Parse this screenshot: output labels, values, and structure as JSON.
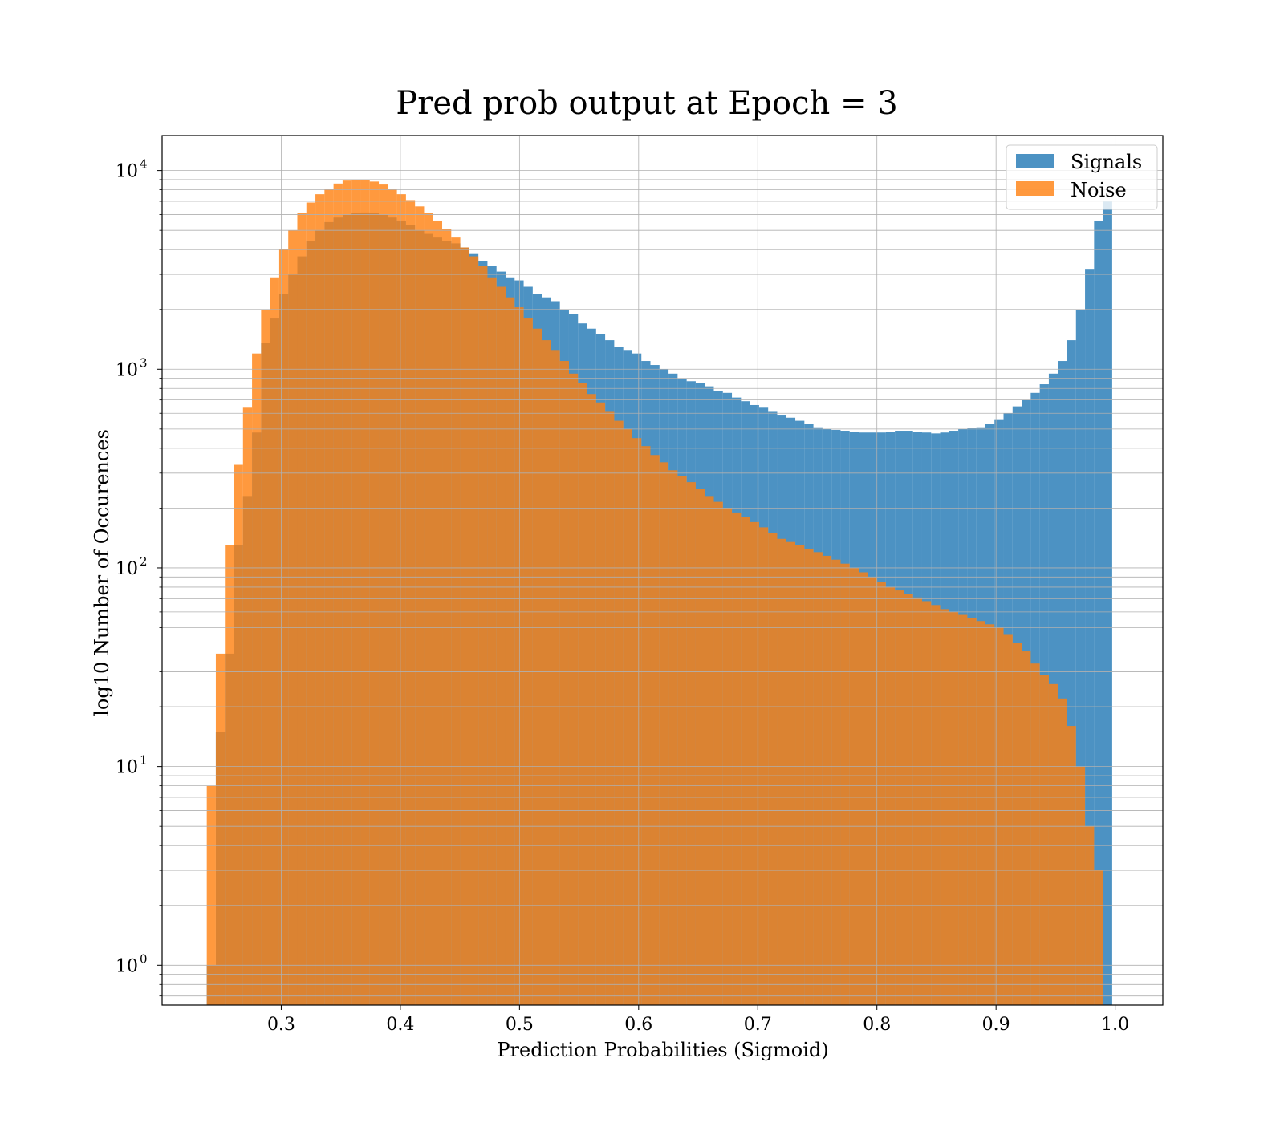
{
  "chart_data": {
    "type": "bar",
    "title": "Pred prob output at Epoch = 3",
    "xlabel": "Prediction Probabilities (Sigmoid)",
    "ylabel": "log10 Number of Occurences",
    "yscale": "log",
    "grid": true,
    "legend_position": "top-right",
    "xlim": [
      0.2,
      1.04
    ],
    "ylim": [
      0.63,
      15000
    ],
    "xticks": [
      "0.3",
      "0.4",
      "0.5",
      "0.6",
      "0.7",
      "0.8",
      "0.9",
      "1.0"
    ],
    "yticks": [
      {
        "base": "10",
        "exp": "0",
        "value": 1
      },
      {
        "base": "10",
        "exp": "1",
        "value": 10
      },
      {
        "base": "10",
        "exp": "2",
        "value": 100
      },
      {
        "base": "10",
        "exp": "3",
        "value": 1000
      },
      {
        "base": "10",
        "exp": "4",
        "value": 10000
      }
    ],
    "bin_edges_start": 0.2375,
    "bin_width": 0.0076,
    "series": [
      {
        "name": "Signals",
        "color": "#1f77b4",
        "alpha": 0.8,
        "values": [
          1,
          15,
          37,
          130,
          230,
          480,
          1350,
          1800,
          2400,
          3000,
          3700,
          4400,
          5000,
          5500,
          5800,
          6000,
          6100,
          6150,
          6100,
          6000,
          5800,
          5600,
          5300,
          5000,
          4800,
          4600,
          4400,
          4300,
          4100,
          3800,
          3500,
          3300,
          3100,
          2900,
          2800,
          2600,
          2400,
          2300,
          2200,
          2000,
          1900,
          1700,
          1600,
          1500,
          1400,
          1300,
          1250,
          1200,
          1100,
          1050,
          1000,
          950,
          900,
          870,
          850,
          820,
          780,
          760,
          720,
          690,
          660,
          640,
          610,
          590,
          570,
          550,
          530,
          510,
          500,
          495,
          490,
          485,
          480,
          480,
          480,
          485,
          490,
          490,
          485,
          480,
          475,
          480,
          490,
          500,
          505,
          510,
          530,
          560,
          600,
          650,
          700,
          760,
          840,
          950,
          1100,
          1400,
          2000,
          3200,
          5600,
          7000
        ]
      },
      {
        "name": "Noise",
        "color": "#ff7f0e",
        "alpha": 0.8,
        "values": [
          8,
          37,
          130,
          330,
          640,
          1200,
          2000,
          2900,
          4000,
          5000,
          6100,
          6900,
          7600,
          8100,
          8600,
          8900,
          9000,
          9000,
          8800,
          8500,
          8100,
          7600,
          7100,
          6600,
          6100,
          5600,
          5100,
          4600,
          4100,
          3700,
          3300,
          2900,
          2600,
          2300,
          2050,
          1800,
          1600,
          1400,
          1250,
          1100,
          950,
          850,
          750,
          680,
          610,
          550,
          500,
          450,
          410,
          370,
          340,
          310,
          290,
          270,
          250,
          230,
          215,
          200,
          190,
          180,
          170,
          160,
          150,
          140,
          135,
          130,
          125,
          120,
          115,
          110,
          105,
          100,
          95,
          90,
          85,
          80,
          77,
          74,
          71,
          68,
          65,
          62,
          60,
          58,
          56,
          54,
          52,
          50,
          46,
          42,
          38,
          33,
          29,
          26,
          22,
          16,
          10,
          5,
          3
        ]
      }
    ]
  }
}
